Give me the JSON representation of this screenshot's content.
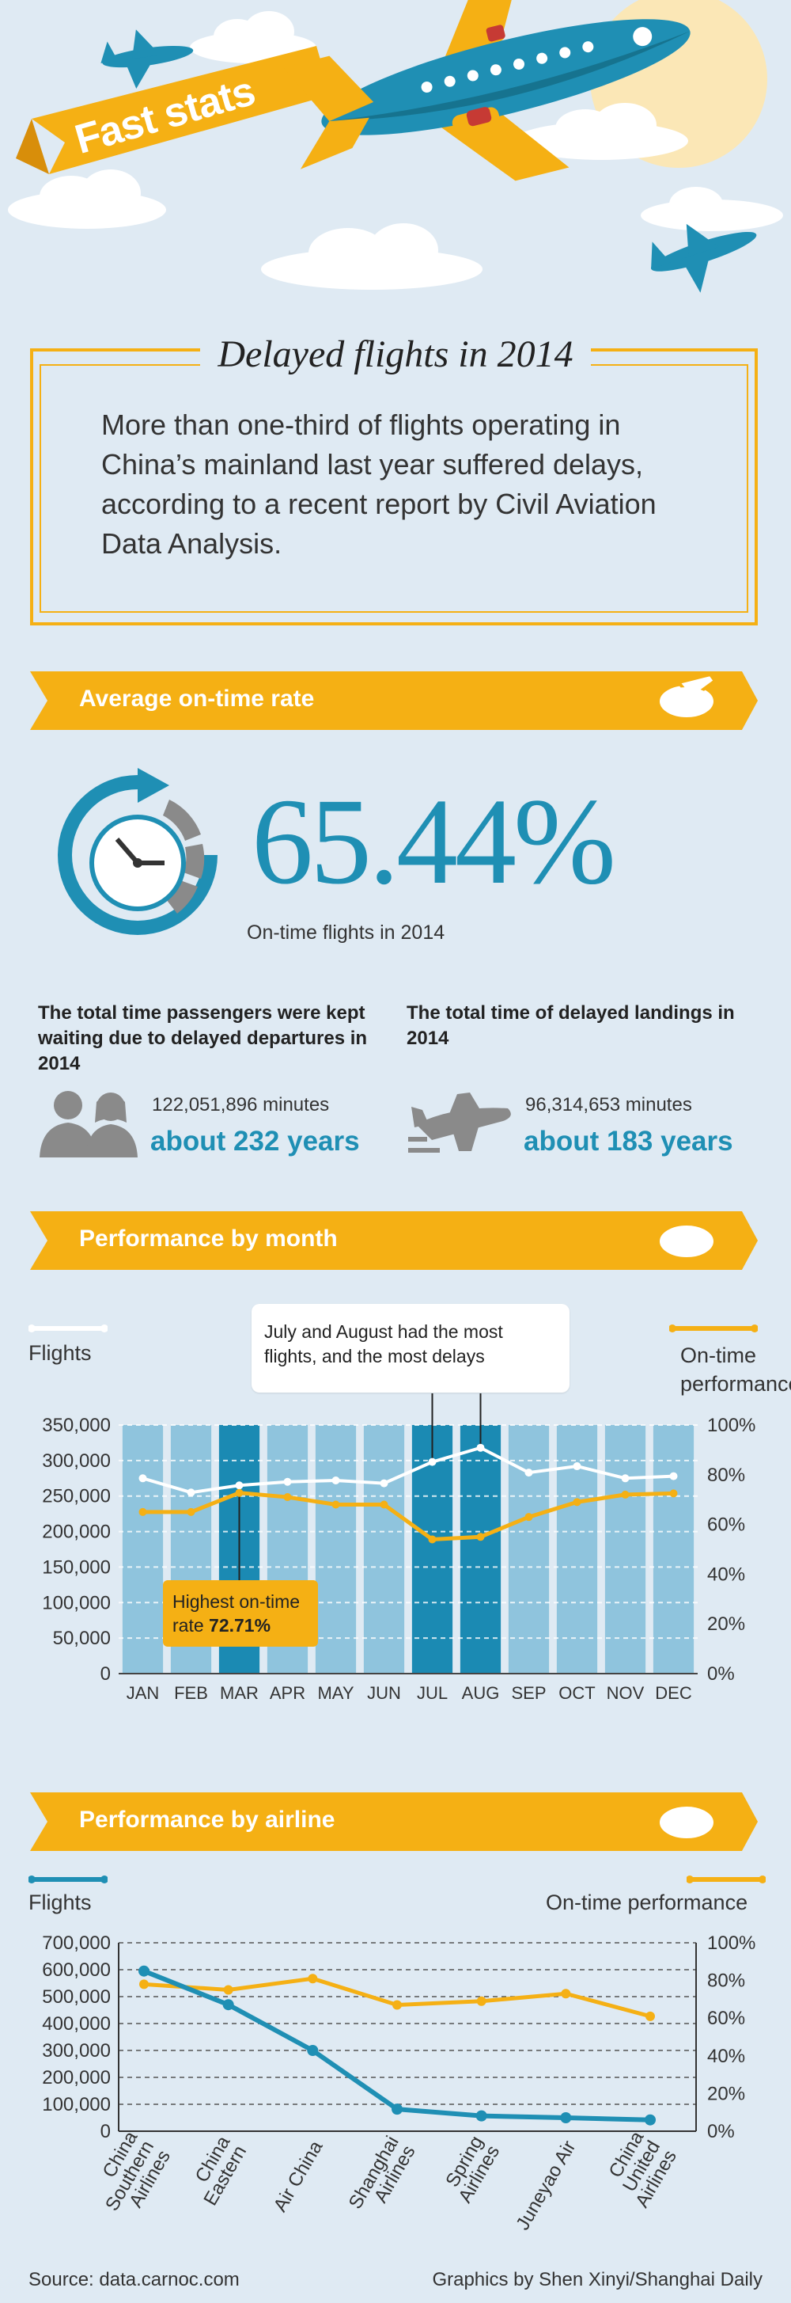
{
  "header": {
    "banner": "Fast stats"
  },
  "intro": {
    "title": "Delayed flights in 2014",
    "body": "More than one-third of flights operating in China’s mainland last year suffered delays, according to a recent report by Civil Aviation Data Analysis."
  },
  "sections": {
    "ontime": "Average on-time rate",
    "month": "Performance by month",
    "airline": "Performance by airline"
  },
  "ontime": {
    "rate": "65.44%",
    "caption": "On-time flights in 2014",
    "waiting": {
      "heading": "The total time passengers were kept waiting due to delayed departures in 2014",
      "minutes": "122,051,896 minutes",
      "years": "about 232 years"
    },
    "landings": {
      "heading": "The total time of delayed landings in 2014",
      "minutes": "96,314,653 minutes",
      "years": "about 183 years"
    }
  },
  "month_chart": {
    "legend_left": "Flights",
    "legend_right": "On-time performance",
    "callout": "July and August had the most flights, and the most delays",
    "highest_label": "Highest on-time rate",
    "highest_value": "72.71%"
  },
  "airline_chart": {
    "legend_left": "Flights",
    "legend_right": "On-time performance"
  },
  "footer": {
    "source": "Source: data.carnoc.com",
    "credit": "Graphics by Shen Xinyi/Shanghai Daily"
  },
  "colors": {
    "background": "#dfeaf3",
    "accent_yellow": "#f5b014",
    "accent_blue": "#1f8fb4",
    "bar_light": "#8fc4dd",
    "bar_dark": "#1b8ab3"
  },
  "chart_data": [
    {
      "type": "bar",
      "categories": [
        "JAN",
        "FEB",
        "MAR",
        "APR",
        "MAY",
        "JUN",
        "JUL",
        "AUG",
        "SEP",
        "OCT",
        "NOV",
        "DEC"
      ],
      "highlighted": [
        "MAR",
        "JUL",
        "AUG"
      ],
      "series": [
        {
          "name": "Flights",
          "values": [
            275000,
            255000,
            265000,
            270000,
            272000,
            268000,
            298000,
            318000,
            283000,
            292000,
            275000,
            278000
          ]
        },
        {
          "name": "On-time performance",
          "values": [
            65,
            65,
            72.71,
            71,
            68,
            68,
            54,
            55,
            63,
            69,
            72,
            72.5
          ]
        }
      ],
      "ylim_left": [
        0,
        350000
      ],
      "yticks_left": [
        "0",
        "50,000",
        "100,000",
        "150,000",
        "200,000",
        "250,000",
        "300,000",
        "350,000"
      ],
      "ylim_right": [
        0,
        100
      ],
      "yticks_right": [
        "0%",
        "20%",
        "40%",
        "60%",
        "80%",
        "100%"
      ]
    },
    {
      "type": "line",
      "categories": [
        "China Southern Airlines",
        "China Eastern",
        "Air China",
        "Shanghai Airlines",
        "Spring Airlines",
        "Juneyao Air",
        "China United Airlines"
      ],
      "category_lines": [
        [
          "China",
          "Southern",
          "Airlines"
        ],
        [
          "China",
          "Eastern"
        ],
        [
          "Air China"
        ],
        [
          "Shanghai",
          "Airlines"
        ],
        [
          "Spring",
          "Airlines"
        ],
        [
          "Juneyao Air"
        ],
        [
          "China",
          "United",
          "Airlines"
        ]
      ],
      "series": [
        {
          "name": "Flights",
          "values": [
            595000,
            470000,
            300000,
            82000,
            57000,
            50000,
            42000
          ]
        },
        {
          "name": "On-time performance",
          "values": [
            78,
            75,
            81,
            67,
            69,
            73,
            61
          ]
        }
      ],
      "ylim_left": [
        0,
        700000
      ],
      "yticks_left": [
        "0",
        "100,000",
        "200,000",
        "300,000",
        "400,000",
        "500,000",
        "600,000",
        "700,000"
      ],
      "ylim_right": [
        0,
        100
      ],
      "yticks_right": [
        "0%",
        "20%",
        "40%",
        "60%",
        "80%",
        "100%"
      ]
    }
  ]
}
